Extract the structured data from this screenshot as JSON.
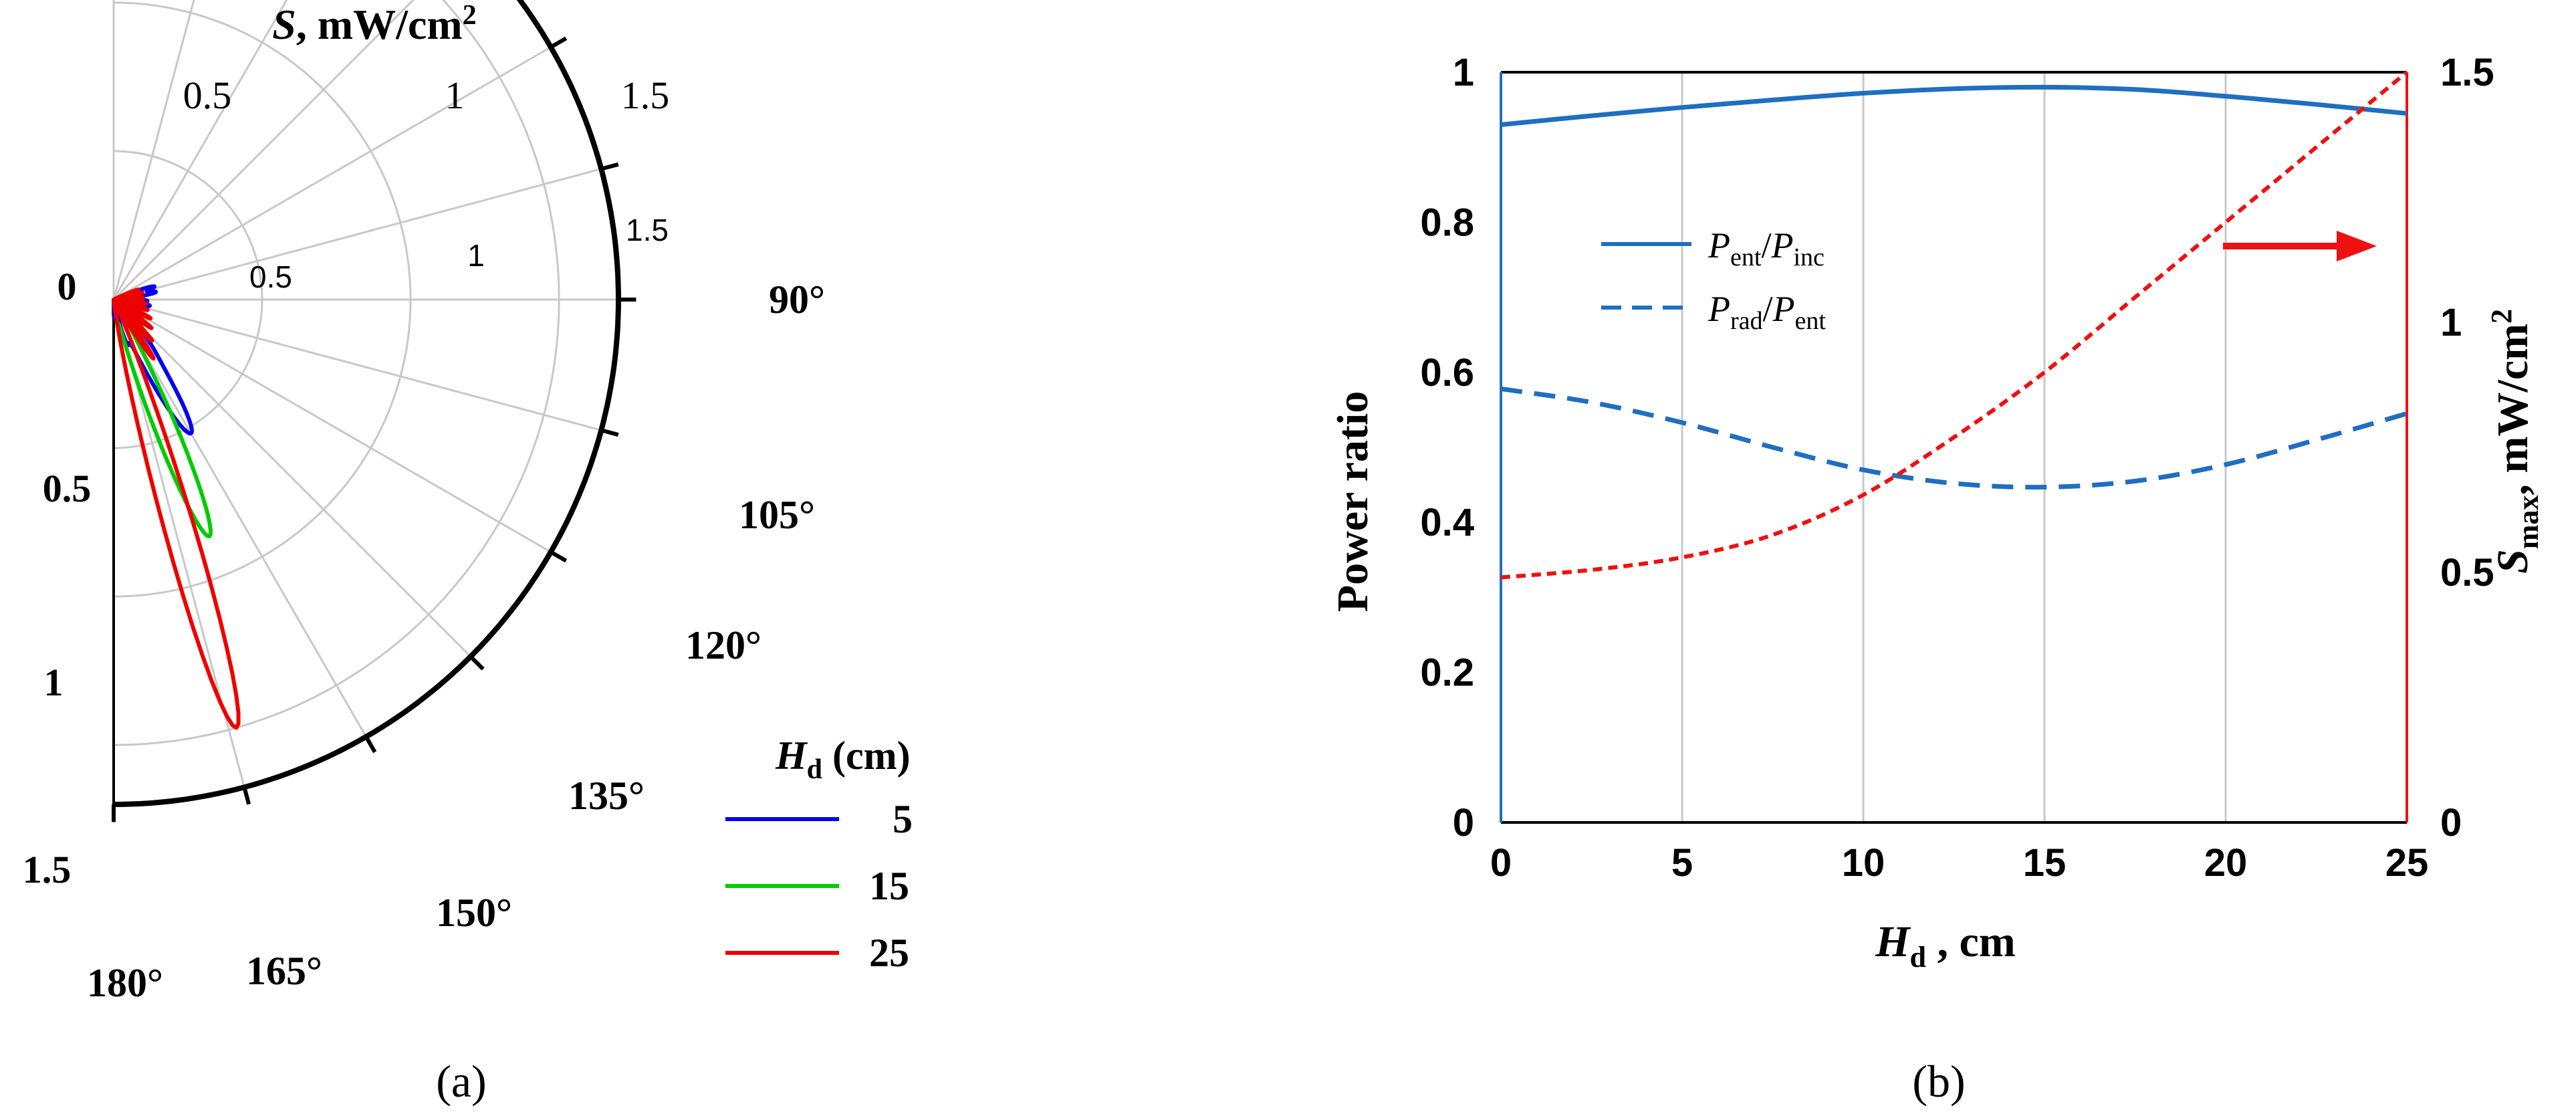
{
  "colors": {
    "blue": "#0000ee",
    "green": "#00cc00",
    "red": "#ee0000",
    "line_blue": "#1f6fc0",
    "dashed_red": "#ee1111",
    "axis_red": "#ee1111",
    "grid": "#c8c8c8"
  },
  "chart_data": [
    {
      "type": "polar",
      "panel_label": "(a)",
      "radial_axis": {
        "symbol": "S",
        "unit": ", mW/cm",
        "unit_sup": "2",
        "ticks": [
          "0.5",
          "1",
          "1.5"
        ],
        "range": [
          0,
          1.7
        ]
      },
      "angle_ticks": [
        "90°",
        "105°",
        "120°",
        "135°",
        "150°",
        "165°",
        "180°"
      ],
      "left_ticks": [
        "0",
        "0.5",
        "1",
        "1.5"
      ],
      "inner_ticks": [
        "0.5",
        "1",
        "1.5"
      ],
      "legend": {
        "title_symbol": "H",
        "title_sub": "d",
        "title_unit": " (cm)",
        "entries": [
          "5",
          "15",
          "25"
        ]
      },
      "series": [
        {
          "name": "5",
          "color_key": "blue",
          "lobes": [
            {
              "angle_deg": 150,
              "peak": 0.52,
              "width_deg": 5.0
            },
            {
              "angle_deg": 163,
              "peak": 0.14,
              "width_deg": 3.0
            },
            {
              "angle_deg": 140,
              "peak": 0.12,
              "width_deg": 3.0
            },
            {
              "angle_deg": 125,
              "peak": 0.11,
              "width_deg": 3.0
            },
            {
              "angle_deg": 110,
              "peak": 0.09,
              "width_deg": 3.0
            },
            {
              "angle_deg": 100,
              "peak": 0.12,
              "width_deg": 3.0
            },
            {
              "angle_deg": 92,
              "peak": 0.11,
              "width_deg": 3.0
            },
            {
              "angle_deg": 80,
              "peak": 0.14,
              "width_deg": 3.0
            },
            {
              "angle_deg": 72,
              "peak": 0.14,
              "width_deg": 3.0
            },
            {
              "angle_deg": 178,
              "peak": 0.06,
              "width_deg": 3.0
            }
          ]
        },
        {
          "name": "15",
          "color_key": "green",
          "lobes": [
            {
              "angle_deg": 158,
              "peak": 0.86,
              "width_deg": 4.0
            },
            {
              "angle_deg": 144,
              "peak": 0.16,
              "width_deg": 2.5
            },
            {
              "angle_deg": 131,
              "peak": 0.13,
              "width_deg": 2.5
            },
            {
              "angle_deg": 118,
              "peak": 0.12,
              "width_deg": 2.5
            },
            {
              "angle_deg": 106,
              "peak": 0.1,
              "width_deg": 2.5
            },
            {
              "angle_deg": 96,
              "peak": 0.1,
              "width_deg": 2.5
            },
            {
              "angle_deg": 86,
              "peak": 0.08,
              "width_deg": 2.5
            },
            {
              "angle_deg": 170,
              "peak": 0.07,
              "width_deg": 2.5
            }
          ]
        },
        {
          "name": "25",
          "color_key": "red",
          "lobes": [
            {
              "angle_deg": 164,
              "peak": 1.5,
              "width_deg": 3.2
            },
            {
              "angle_deg": 146,
              "peak": 0.24,
              "width_deg": 2.2
            },
            {
              "angle_deg": 137,
              "peak": 0.19,
              "width_deg": 2.2
            },
            {
              "angle_deg": 127,
              "peak": 0.16,
              "width_deg": 2.2
            },
            {
              "angle_deg": 117,
              "peak": 0.14,
              "width_deg": 2.2
            },
            {
              "angle_deg": 107,
              "peak": 0.12,
              "width_deg": 2.2
            },
            {
              "angle_deg": 97,
              "peak": 0.11,
              "width_deg": 2.2
            },
            {
              "angle_deg": 87,
              "peak": 0.1,
              "width_deg": 2.2
            },
            {
              "angle_deg": 77,
              "peak": 0.1,
              "width_deg": 2.2
            },
            {
              "angle_deg": 68,
              "peak": 0.09,
              "width_deg": 2.2
            }
          ]
        }
      ]
    },
    {
      "type": "line",
      "panel_label": "(b)",
      "x": [
        0,
        2.5,
        5,
        7.5,
        10,
        12.5,
        15,
        17.5,
        20,
        22.5,
        25
      ],
      "xlim": [
        0,
        25
      ],
      "x_ticks": [
        "0",
        "5",
        "10",
        "15",
        "20",
        "25"
      ],
      "x_tick_values": [
        0,
        5,
        10,
        15,
        20,
        25
      ],
      "xlabel_symbol": "H",
      "xlabel_sub": "d",
      "xlabel_unit": " , cm",
      "ylabel": "Power ratio",
      "ylim": [
        0,
        1
      ],
      "y_ticks": [
        "0",
        "0.2",
        "0.4",
        "0.6",
        "0.8",
        "1"
      ],
      "y_tick_values": [
        0,
        0.2,
        0.4,
        0.6,
        0.8,
        1
      ],
      "y2label_symbol": "S",
      "y2label_sub": "max",
      "y2label_unit": ", mW/cm",
      "y2label_sup": "2",
      "y2lim": [
        0,
        1.5
      ],
      "y2_ticks": [
        "0",
        "0.5",
        "1",
        "1.5"
      ],
      "y2_tick_values": [
        0,
        0.5,
        1,
        1.5
      ],
      "series": [
        {
          "name": "Pent/Pinc",
          "legend_num": "P",
          "legend_num_sub": "ent",
          "legend_den": "P",
          "legend_den_sub": "inc",
          "style": "solid",
          "color_key": "line_blue",
          "axis": "left",
          "values": [
            0.93,
            0.942,
            0.953,
            0.963,
            0.972,
            0.978,
            0.98,
            0.977,
            0.968,
            0.957,
            0.945
          ]
        },
        {
          "name": "Prad/Pent",
          "legend_num": "P",
          "legend_num_sub": "rad",
          "legend_den": "P",
          "legend_den_sub": "ent",
          "style": "dashed",
          "color_key": "line_blue",
          "axis": "left",
          "values": [
            0.578,
            0.56,
            0.533,
            0.5,
            0.47,
            0.452,
            0.447,
            0.455,
            0.477,
            0.51,
            0.545
          ]
        },
        {
          "name": "Smax",
          "style": "dotted",
          "color_key": "dashed_red",
          "axis": "right",
          "values": [
            0.49,
            0.505,
            0.53,
            0.575,
            0.655,
            0.77,
            0.9,
            1.05,
            1.2,
            1.35,
            1.5
          ]
        }
      ],
      "annotation": "arrow-right-axis"
    }
  ]
}
